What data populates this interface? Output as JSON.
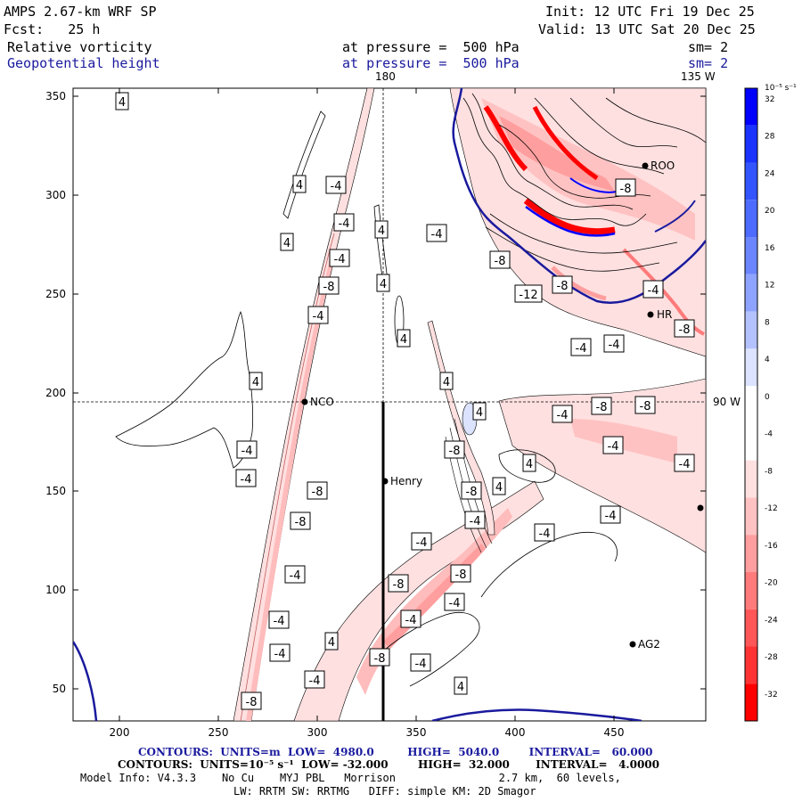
{
  "header": {
    "model": "AMPS 2.67-km WRF SP",
    "fcst": "Fcst:   25 h",
    "init": "Init: 12 UTC Fri 19 Dec 25",
    "valid": "Valid: 13 UTC Sat 20 Dec 25",
    "field1": {
      "name": "Relative vorticity",
      "level": "at pressure =  500 hPa",
      "sm": "sm= 2"
    },
    "field2": {
      "name": "Geopotential height",
      "level": "at pressure =  500 hPa",
      "sm": "sm= 2"
    }
  },
  "map": {
    "lon_180": "180",
    "lon_135w": "135 W",
    "lat_90w": "90 W",
    "x_ticks": [
      "200",
      "250",
      "300",
      "350",
      "400",
      "450"
    ],
    "y_ticks": [
      "350",
      "300",
      "250",
      "200",
      "150",
      "100",
      "50"
    ],
    "stations": [
      {
        "name": "NCO"
      },
      {
        "name": "Henry"
      },
      {
        "name": "ROO"
      },
      {
        "name": "HR"
      },
      {
        "name": "AG2"
      }
    ],
    "contour_labels": [
      "4",
      "4",
      "-4",
      "4",
      "-4",
      "4",
      "-4",
      "-8",
      "-4",
      "4",
      "4",
      "4",
      "4",
      "4",
      "-4",
      "-4",
      "-8",
      "-8",
      "-4",
      "-4",
      "-4",
      "-8",
      "4",
      "-4",
      "-8",
      "-4",
      "4",
      "-4",
      "-12",
      "-8",
      "-8",
      "-8",
      "-4",
      "-4",
      "-4",
      "-4",
      "-8",
      "-8",
      "-4",
      "-4",
      "-8",
      "-4",
      "-4",
      "-8",
      "-8",
      "-4",
      "4",
      "4",
      "-8",
      "-8",
      "-4",
      "-4",
      "-4"
    ]
  },
  "colorbar": {
    "unit": "10⁻⁵ s⁻¹",
    "labels": [
      "32",
      "28",
      "24",
      "20",
      "16",
      "12",
      "8",
      "4",
      "0",
      "-4",
      "-8",
      "-12",
      "-16",
      "-20",
      "-24",
      "-28",
      "-32"
    ],
    "colors": [
      "#0000ff",
      "#1a33ff",
      "#3355ff",
      "#4d6bff",
      "#6b85ff",
      "#8ea3ff",
      "#b3c2ff",
      "#dbe3ff",
      "#ffffff",
      "#ffffff",
      "#ffe0e0",
      "#ffc2c2",
      "#ff9e9e",
      "#ff7a7a",
      "#ff5757",
      "#ff3333",
      "#ff0000"
    ]
  },
  "footer": {
    "line1": "CONTOURS:  UNITS=m  LOW=  4980.0         HIGH=  5040.0        INTERVAL=   60.000",
    "line2": "CONTOURS:  UNITS=10⁻⁵ s⁻¹  LOW= -32.000        HIGH=  32.000       INTERVAL=   4.0000",
    "line3": "Model Info: V4.3.3    No Cu    MYJ PBL   Morrison                2.7 km,  60 levels,",
    "line4": "LW: RRTM SW: RRTMG   DIFF: simple KM: 2D Smagor"
  }
}
